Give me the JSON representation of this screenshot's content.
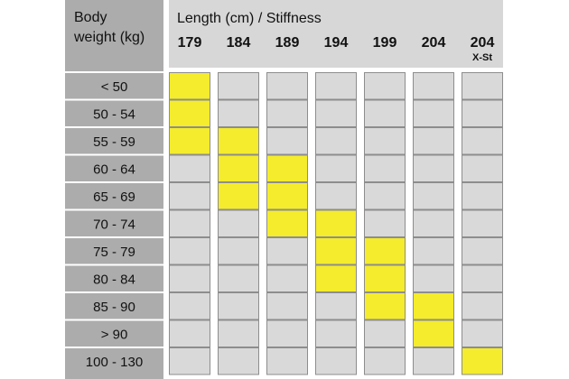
{
  "chart_data": {
    "type": "table",
    "row_header_title": [
      "Body",
      "weight (kg)"
    ],
    "column_header_title": "Length (cm) / Stiffness",
    "columns": [
      {
        "length": "179",
        "sub": ""
      },
      {
        "length": "184",
        "sub": ""
      },
      {
        "length": "189",
        "sub": ""
      },
      {
        "length": "194",
        "sub": ""
      },
      {
        "length": "199",
        "sub": ""
      },
      {
        "length": "204",
        "sub": ""
      },
      {
        "length": "204",
        "sub": "X-St"
      }
    ],
    "rows": [
      "< 50",
      "50 - 54",
      "55 - 59",
      "60 - 64",
      "65 - 69",
      "70 - 74",
      "75 - 79",
      "80 - 84",
      "85 - 90",
      "> 90",
      "100 - 130"
    ],
    "highlighted": [
      {
        "row": "< 50",
        "columns": [
          0
        ]
      },
      {
        "row": "50 - 54",
        "columns": [
          0
        ]
      },
      {
        "row": "55 - 59",
        "columns": [
          0,
          1
        ]
      },
      {
        "row": "60 - 64",
        "columns": [
          1,
          2
        ]
      },
      {
        "row": "65 - 69",
        "columns": [
          1,
          2
        ]
      },
      {
        "row": "70 - 74",
        "columns": [
          2,
          3
        ]
      },
      {
        "row": "75 - 79",
        "columns": [
          3,
          4
        ]
      },
      {
        "row": "80 - 84",
        "columns": [
          3,
          4
        ]
      },
      {
        "row": "85 - 90",
        "columns": [
          4,
          5
        ]
      },
      {
        "row": "> 90",
        "columns": [
          5
        ]
      },
      {
        "row": "100 - 130",
        "columns": [
          6
        ]
      }
    ],
    "colors": {
      "highlight": "#f4ec2c",
      "cell": "#d9d9d9",
      "header_band": "#d7d7d7",
      "weight_column": "#acacac",
      "grid_line": "#ffffff",
      "cell_border": "#8d8d8d"
    }
  }
}
